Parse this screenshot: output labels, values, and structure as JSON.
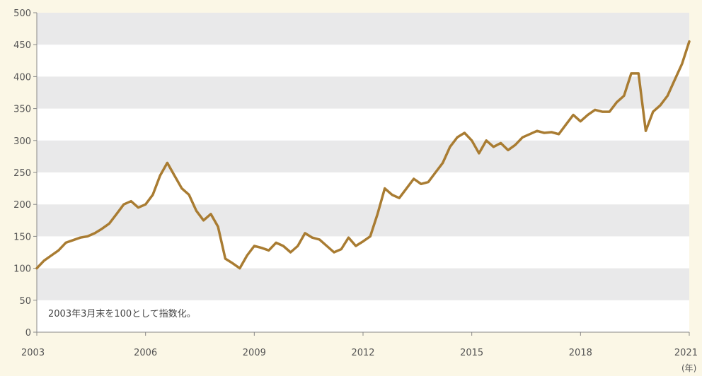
{
  "chart_data": {
    "type": "line",
    "title": "",
    "xlabel": "(年)",
    "ylabel": "",
    "annotation": "2003年3月末を100として指数化。",
    "xlim": [
      2003.0,
      2021.0
    ],
    "ylim": [
      0,
      500
    ],
    "y_ticks": [
      0,
      50,
      100,
      150,
      200,
      250,
      300,
      350,
      400,
      450,
      500
    ],
    "x_ticks": [
      2003,
      2006,
      2009,
      2012,
      2015,
      2018,
      2021
    ],
    "x_tick_labels": [
      "2003",
      "2006",
      "2009",
      "2012",
      "2015",
      "2018",
      "2021"
    ],
    "grid": "alternating horizontal bands",
    "legend": "none",
    "colors": {
      "line": "#a97c32",
      "band": "#e9e9ea",
      "plot_bg": "#ffffff",
      "page_bg": "#fbf7e6",
      "axis": "#888888"
    },
    "series": [
      {
        "x": [
          2003.0,
          2003.2,
          2003.4,
          2003.6,
          2003.8,
          2004.0,
          2004.2,
          2004.4,
          2004.6,
          2004.8,
          2005.0,
          2005.2,
          2005.4,
          2005.6,
          2005.8,
          2006.0,
          2006.2,
          2006.4,
          2006.6,
          2006.8,
          2007.0,
          2007.2,
          2007.4,
          2007.6,
          2007.8,
          2008.0,
          2008.2,
          2008.4,
          2008.6,
          2008.8,
          2009.0,
          2009.2,
          2009.4,
          2009.6,
          2009.8,
          2010.0,
          2010.2,
          2010.4,
          2010.6,
          2010.8,
          2011.0,
          2011.2,
          2011.4,
          2011.6,
          2011.8,
          2012.0,
          2012.2,
          2012.4,
          2012.6,
          2012.8,
          2013.0,
          2013.2,
          2013.4,
          2013.6,
          2013.8,
          2014.0,
          2014.2,
          2014.4,
          2014.6,
          2014.8,
          2015.0,
          2015.2,
          2015.4,
          2015.6,
          2015.8,
          2016.0,
          2016.2,
          2016.4,
          2016.6,
          2016.8,
          2017.0,
          2017.2,
          2017.4,
          2017.6,
          2017.8,
          2018.0,
          2018.2,
          2018.4,
          2018.6,
          2018.8,
          2019.0,
          2019.2,
          2019.4,
          2019.6,
          2019.8,
          2020.0,
          2020.2,
          2020.4,
          2020.6,
          2020.8,
          2021.0
        ],
        "values": [
          100,
          112,
          120,
          128,
          140,
          144,
          148,
          150,
          155,
          162,
          170,
          185,
          200,
          205,
          195,
          200,
          215,
          245,
          265,
          245,
          225,
          215,
          190,
          175,
          185,
          165,
          115,
          108,
          100,
          120,
          135,
          132,
          128,
          140,
          135,
          125,
          135,
          155,
          148,
          145,
          135,
          125,
          130,
          148,
          135,
          142,
          150,
          185,
          225,
          215,
          210,
          225,
          240,
          232,
          235,
          250,
          265,
          290,
          305,
          312,
          300,
          280,
          300,
          290,
          296,
          285,
          293,
          305,
          310,
          315,
          312,
          313,
          310,
          325,
          340,
          330,
          340,
          348,
          345,
          345,
          360,
          370,
          405,
          405,
          315,
          345,
          355,
          370,
          395,
          420,
          455
        ]
      }
    ]
  }
}
